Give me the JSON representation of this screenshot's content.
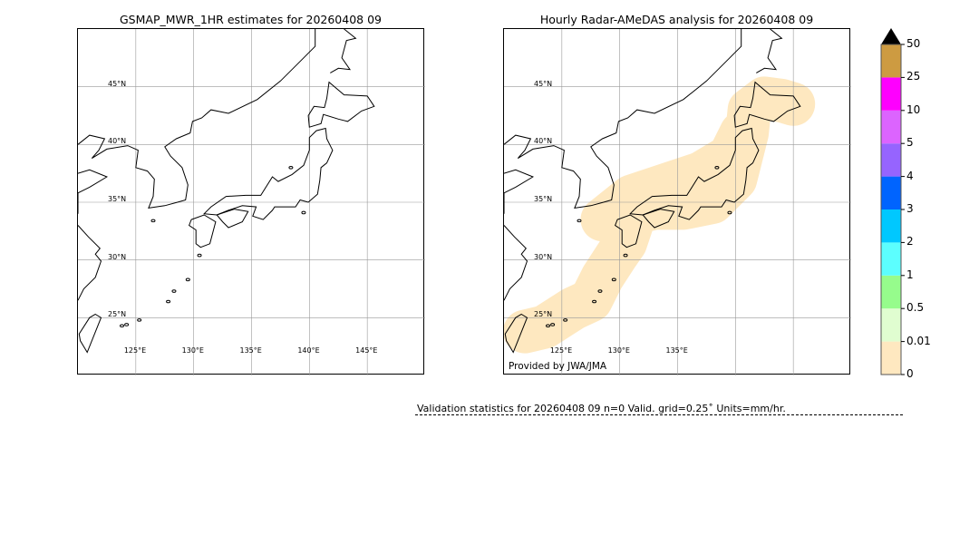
{
  "left_map": {
    "title": "GSMAP_MWR_1HR estimates for 20260408 09",
    "lat_labels": [
      "45°N",
      "40°N",
      "35°N",
      "30°N",
      "25°N"
    ],
    "lon_labels": [
      "125°E",
      "130°E",
      "135°E",
      "140°E",
      "145°E"
    ]
  },
  "right_map": {
    "title": "Hourly Radar-AMeDAS analysis for 20260408 09",
    "lat_labels": [
      "45°N",
      "40°N",
      "35°N",
      "30°N",
      "25°N"
    ],
    "lon_labels": [
      "125°E",
      "130°E",
      "135°E"
    ],
    "credit": "Provided by JWA/JMA",
    "rain_color": "#fee8c0"
  },
  "colorbar": {
    "ticks": [
      "0",
      "0.01",
      "0.5",
      "1",
      "2",
      "3",
      "4",
      "5",
      "10",
      "25",
      "50"
    ],
    "colors": [
      "#fee8c0",
      "#e0fdd0",
      "#96fc8c",
      "#5cfefe",
      "#00c8fe",
      "#0064fe",
      "#9664fe",
      "#dc64fe",
      "#fe00fe",
      "#cd9b41"
    ],
    "extend_color": "#000000"
  },
  "stats": "Validation statistics for 20260408 09  n=0 Valid. grid=0.25˚ Units=mm/hr."
}
